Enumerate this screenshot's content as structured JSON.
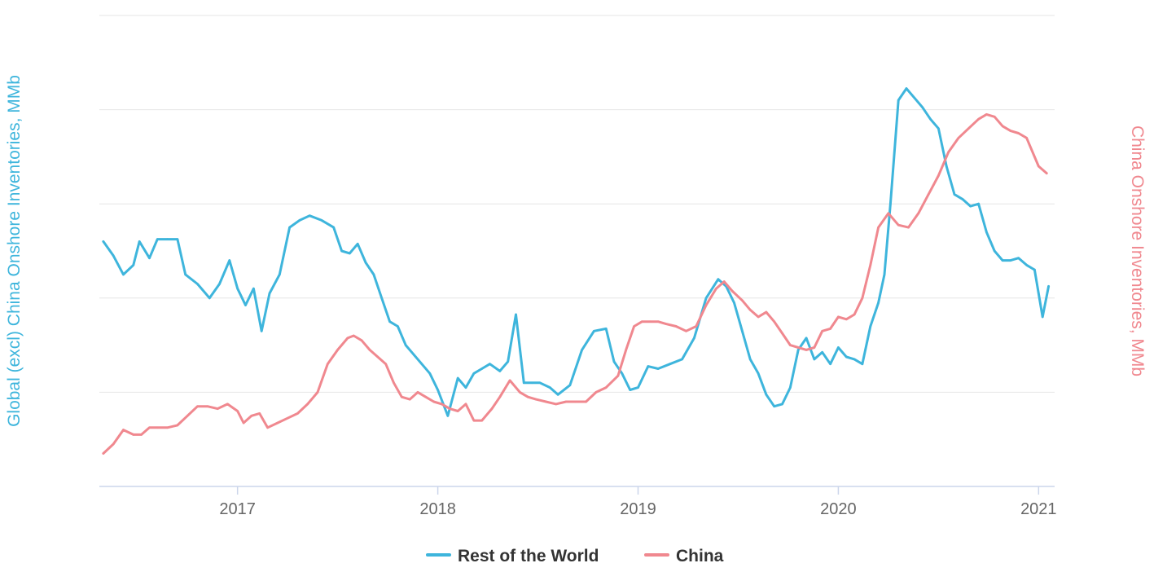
{
  "chart_data": {
    "type": "line",
    "title": "",
    "x_tick_labels": [
      "2017",
      "2018",
      "2019",
      "2020",
      "2021"
    ],
    "x_range": [
      2016.31,
      2021.08
    ],
    "left_axis": {
      "label": "Global (excl) China Onshore Inventories, MMb",
      "color": "#3eb5dc",
      "show_tick_labels": false
    },
    "right_axis": {
      "label": "China Onshore Inventories, MMb",
      "color": "#f0888f",
      "show_tick_labels": false
    },
    "ylim": [
      0,
      100
    ],
    "grid": true,
    "legend_position": "bottom",
    "note": "The chart prints no y tick values; y values below are relative positions 0-100 (0 = bottom of plot, 100 = top gridline).",
    "series": [
      {
        "name": "Rest of the World",
        "color": "#3eb5dc",
        "axis": "left",
        "points": [
          [
            2016.33,
            52.0
          ],
          [
            2016.38,
            49.0
          ],
          [
            2016.43,
            45.0
          ],
          [
            2016.48,
            47.0
          ],
          [
            2016.51,
            52.0
          ],
          [
            2016.56,
            48.5
          ],
          [
            2016.6,
            52.5
          ],
          [
            2016.65,
            52.5
          ],
          [
            2016.7,
            52.5
          ],
          [
            2016.74,
            45.0
          ],
          [
            2016.8,
            43.0
          ],
          [
            2016.86,
            40.0
          ],
          [
            2016.91,
            43.0
          ],
          [
            2016.96,
            48.0
          ],
          [
            2017.0,
            42.0
          ],
          [
            2017.04,
            38.5
          ],
          [
            2017.08,
            42.0
          ],
          [
            2017.12,
            33.0
          ],
          [
            2017.16,
            41.0
          ],
          [
            2017.21,
            45.0
          ],
          [
            2017.26,
            55.0
          ],
          [
            2017.31,
            56.5
          ],
          [
            2017.36,
            57.5
          ],
          [
            2017.42,
            56.5
          ],
          [
            2017.48,
            55.0
          ],
          [
            2017.52,
            50.0
          ],
          [
            2017.56,
            49.5
          ],
          [
            2017.6,
            51.5
          ],
          [
            2017.64,
            47.5
          ],
          [
            2017.68,
            45.0
          ],
          [
            2017.72,
            40.0
          ],
          [
            2017.76,
            35.0
          ],
          [
            2017.8,
            34.0
          ],
          [
            2017.84,
            30.0
          ],
          [
            2017.88,
            28.0
          ],
          [
            2017.92,
            26.0
          ],
          [
            2017.96,
            24.0
          ],
          [
            2018.0,
            20.5
          ],
          [
            2018.05,
            15.0
          ],
          [
            2018.1,
            23.0
          ],
          [
            2018.14,
            21.0
          ],
          [
            2018.18,
            24.0
          ],
          [
            2018.22,
            25.0
          ],
          [
            2018.26,
            26.0
          ],
          [
            2018.31,
            24.5
          ],
          [
            2018.35,
            26.5
          ],
          [
            2018.39,
            36.5
          ],
          [
            2018.43,
            22.0
          ],
          [
            2018.47,
            22.0
          ],
          [
            2018.51,
            22.0
          ],
          [
            2018.56,
            21.0
          ],
          [
            2018.6,
            19.5
          ],
          [
            2018.66,
            21.5
          ],
          [
            2018.72,
            29.0
          ],
          [
            2018.78,
            33.0
          ],
          [
            2018.84,
            33.5
          ],
          [
            2018.88,
            26.5
          ],
          [
            2018.92,
            24.0
          ],
          [
            2018.96,
            20.5
          ],
          [
            2019.0,
            21.0
          ],
          [
            2019.05,
            25.5
          ],
          [
            2019.1,
            25.0
          ],
          [
            2019.16,
            26.0
          ],
          [
            2019.22,
            27.0
          ],
          [
            2019.28,
            31.5
          ],
          [
            2019.34,
            40.0
          ],
          [
            2019.4,
            44.0
          ],
          [
            2019.44,
            42.5
          ],
          [
            2019.48,
            39.0
          ],
          [
            2019.52,
            33.0
          ],
          [
            2019.56,
            27.0
          ],
          [
            2019.6,
            24.0
          ],
          [
            2019.64,
            19.5
          ],
          [
            2019.68,
            17.0
          ],
          [
            2019.72,
            17.5
          ],
          [
            2019.76,
            21.0
          ],
          [
            2019.8,
            29.0
          ],
          [
            2019.84,
            31.5
          ],
          [
            2019.88,
            27.0
          ],
          [
            2019.92,
            28.5
          ],
          [
            2019.96,
            26.0
          ],
          [
            2020.0,
            29.5
          ],
          [
            2020.04,
            27.5
          ],
          [
            2020.08,
            27.0
          ],
          [
            2020.12,
            26.0
          ],
          [
            2020.16,
            34.0
          ],
          [
            2020.2,
            39.0
          ],
          [
            2020.23,
            45.0
          ],
          [
            2020.26,
            60.0
          ],
          [
            2020.3,
            82.0
          ],
          [
            2020.34,
            84.5
          ],
          [
            2020.38,
            82.5
          ],
          [
            2020.42,
            80.5
          ],
          [
            2020.46,
            78.0
          ],
          [
            2020.5,
            76.0
          ],
          [
            2020.54,
            68.0
          ],
          [
            2020.58,
            62.0
          ],
          [
            2020.62,
            61.0
          ],
          [
            2020.66,
            59.5
          ],
          [
            2020.7,
            60.0
          ],
          [
            2020.74,
            54.0
          ],
          [
            2020.78,
            50.0
          ],
          [
            2020.82,
            48.0
          ],
          [
            2020.86,
            48.0
          ],
          [
            2020.9,
            48.5
          ],
          [
            2020.94,
            47.0
          ],
          [
            2020.98,
            46.0
          ],
          [
            2021.02,
            36.0
          ],
          [
            2021.05,
            42.5
          ]
        ]
      },
      {
        "name": "China",
        "color": "#f0888f",
        "axis": "right",
        "points": [
          [
            2016.33,
            7.0
          ],
          [
            2016.38,
            9.0
          ],
          [
            2016.43,
            12.0
          ],
          [
            2016.48,
            11.0
          ],
          [
            2016.52,
            11.0
          ],
          [
            2016.56,
            12.5
          ],
          [
            2016.6,
            12.5
          ],
          [
            2016.65,
            12.5
          ],
          [
            2016.7,
            13.0
          ],
          [
            2016.75,
            15.0
          ],
          [
            2016.8,
            17.0
          ],
          [
            2016.85,
            17.0
          ],
          [
            2016.9,
            16.5
          ],
          [
            2016.95,
            17.5
          ],
          [
            2017.0,
            16.0
          ],
          [
            2017.03,
            13.5
          ],
          [
            2017.07,
            15.0
          ],
          [
            2017.11,
            15.5
          ],
          [
            2017.15,
            12.5
          ],
          [
            2017.2,
            13.5
          ],
          [
            2017.25,
            14.5
          ],
          [
            2017.3,
            15.5
          ],
          [
            2017.35,
            17.5
          ],
          [
            2017.4,
            20.0
          ],
          [
            2017.45,
            26.0
          ],
          [
            2017.5,
            29.0
          ],
          [
            2017.55,
            31.5
          ],
          [
            2017.58,
            32.0
          ],
          [
            2017.62,
            31.0
          ],
          [
            2017.66,
            29.0
          ],
          [
            2017.7,
            27.5
          ],
          [
            2017.74,
            26.0
          ],
          [
            2017.78,
            22.0
          ],
          [
            2017.82,
            19.0
          ],
          [
            2017.86,
            18.5
          ],
          [
            2017.9,
            20.0
          ],
          [
            2017.94,
            19.0
          ],
          [
            2017.98,
            18.0
          ],
          [
            2018.02,
            17.5
          ],
          [
            2018.06,
            16.5
          ],
          [
            2018.1,
            16.0
          ],
          [
            2018.14,
            17.5
          ],
          [
            2018.18,
            14.0
          ],
          [
            2018.22,
            14.0
          ],
          [
            2018.27,
            16.5
          ],
          [
            2018.31,
            19.0
          ],
          [
            2018.36,
            22.5
          ],
          [
            2018.41,
            20.0
          ],
          [
            2018.45,
            19.0
          ],
          [
            2018.49,
            18.5
          ],
          [
            2018.54,
            18.0
          ],
          [
            2018.59,
            17.5
          ],
          [
            2018.64,
            18.0
          ],
          [
            2018.69,
            18.0
          ],
          [
            2018.74,
            18.0
          ],
          [
            2018.79,
            20.0
          ],
          [
            2018.84,
            21.0
          ],
          [
            2018.9,
            23.5
          ],
          [
            2018.94,
            29.0
          ],
          [
            2018.98,
            34.0
          ],
          [
            2019.02,
            35.0
          ],
          [
            2019.06,
            35.0
          ],
          [
            2019.1,
            35.0
          ],
          [
            2019.14,
            34.5
          ],
          [
            2019.19,
            34.0
          ],
          [
            2019.24,
            33.0
          ],
          [
            2019.29,
            34.0
          ],
          [
            2019.34,
            38.5
          ],
          [
            2019.39,
            42.0
          ],
          [
            2019.43,
            43.5
          ],
          [
            2019.47,
            41.5
          ],
          [
            2019.52,
            39.5
          ],
          [
            2019.56,
            37.5
          ],
          [
            2019.6,
            36.0
          ],
          [
            2019.64,
            37.0
          ],
          [
            2019.68,
            35.0
          ],
          [
            2019.72,
            32.5
          ],
          [
            2019.76,
            30.0
          ],
          [
            2019.8,
            29.5
          ],
          [
            2019.84,
            29.0
          ],
          [
            2019.88,
            29.5
          ],
          [
            2019.92,
            33.0
          ],
          [
            2019.96,
            33.5
          ],
          [
            2020.0,
            36.0
          ],
          [
            2020.04,
            35.5
          ],
          [
            2020.08,
            36.5
          ],
          [
            2020.12,
            40.0
          ],
          [
            2020.16,
            47.0
          ],
          [
            2020.2,
            55.0
          ],
          [
            2020.25,
            58.0
          ],
          [
            2020.3,
            55.5
          ],
          [
            2020.35,
            55.0
          ],
          [
            2020.4,
            58.0
          ],
          [
            2020.45,
            62.0
          ],
          [
            2020.5,
            66.0
          ],
          [
            2020.55,
            71.0
          ],
          [
            2020.6,
            74.0
          ],
          [
            2020.65,
            76.0
          ],
          [
            2020.7,
            78.0
          ],
          [
            2020.74,
            79.0
          ],
          [
            2020.78,
            78.5
          ],
          [
            2020.82,
            76.5
          ],
          [
            2020.86,
            75.5
          ],
          [
            2020.9,
            75.0
          ],
          [
            2020.94,
            74.0
          ],
          [
            2021.0,
            68.0
          ],
          [
            2021.04,
            66.5
          ]
        ]
      }
    ]
  }
}
